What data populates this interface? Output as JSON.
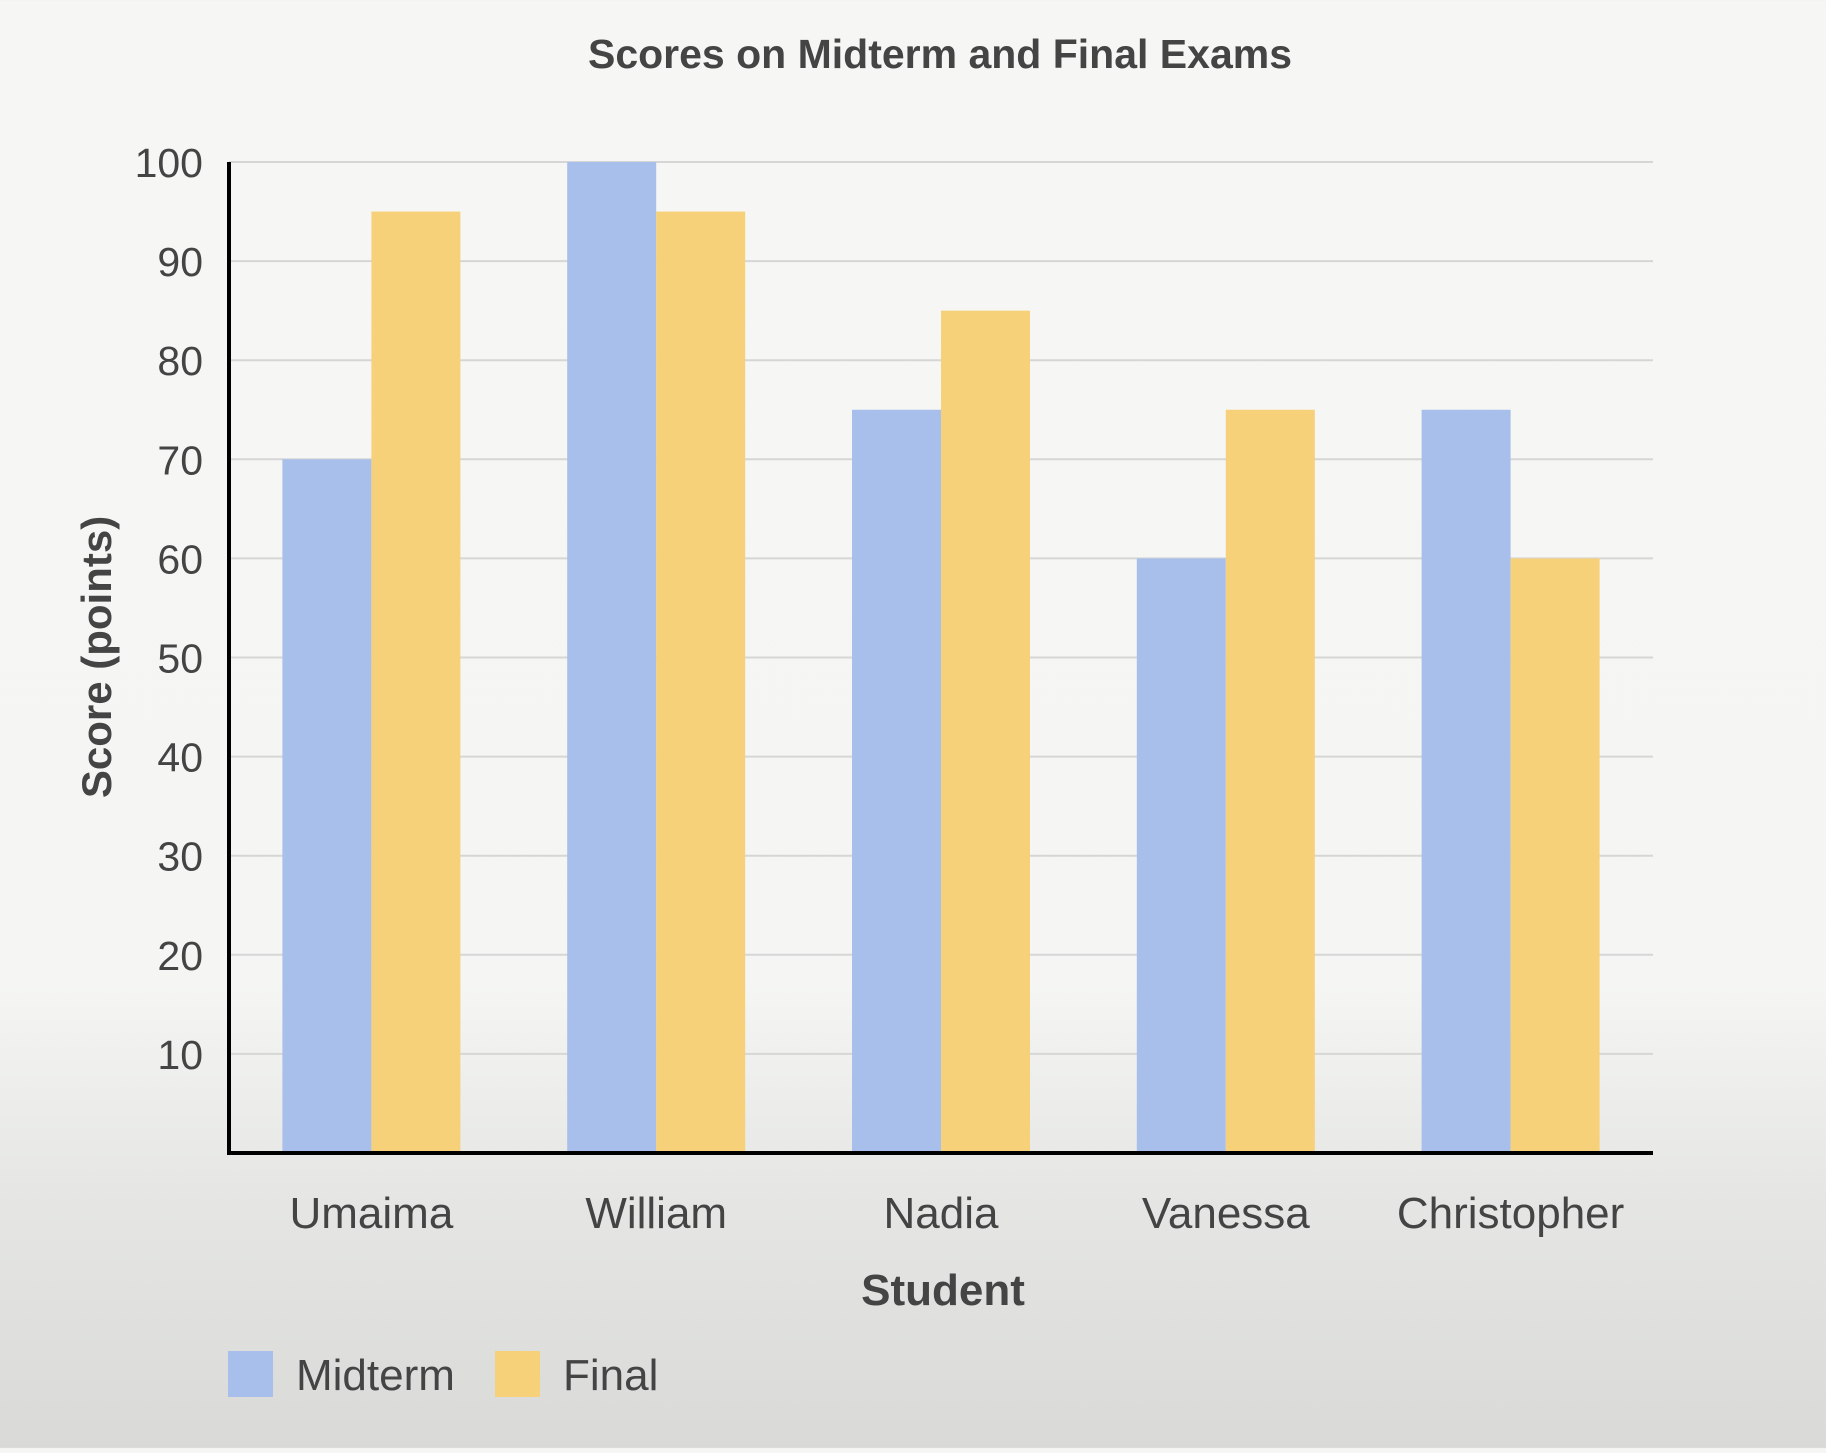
{
  "chart_data": {
    "type": "bar",
    "title": "Scores on Midterm and Final Exams",
    "xlabel": "Student",
    "ylabel": "Score (points)",
    "categories": [
      "Umaima",
      "William",
      "Nadia",
      "Vanessa",
      "Christopher"
    ],
    "series": [
      {
        "name": "Midterm",
        "values": [
          70,
          100,
          75,
          60,
          75
        ],
        "color": "#a7bfea"
      },
      {
        "name": "Final",
        "values": [
          95,
          95,
          85,
          75,
          60
        ],
        "color": "#f7d07a"
      }
    ],
    "ylim": [
      0,
      100
    ],
    "yticks": [
      "10",
      "20",
      "30",
      "40",
      "50",
      "60",
      "70",
      "80",
      "90",
      "100"
    ],
    "grid": true,
    "legend_position": "bottom-left"
  }
}
